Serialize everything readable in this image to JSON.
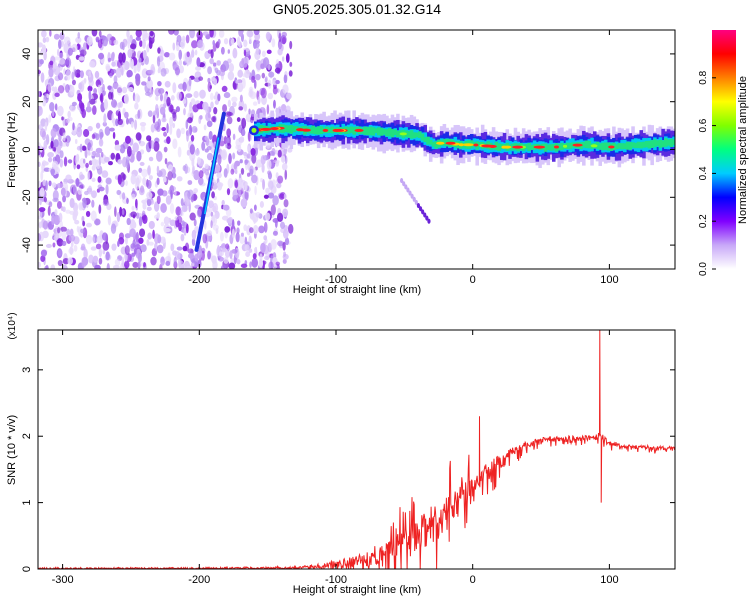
{
  "title": "GN05.2025.305.01.32.G14",
  "colors": {
    "snr_line": "#ee2222",
    "ridge_blue": "#2233dd",
    "noise_purple": "#8a2be2",
    "frame": "#000000"
  },
  "chart_data": [
    {
      "type": "heatmap",
      "title": "GN05.2025.305.01.32.G14",
      "xlabel": "Height of straight line (km)",
      "ylabel": "Frequency (Hz)",
      "xlim": [
        -318,
        148
      ],
      "ylim": [
        -50,
        50
      ],
      "xticks": [
        -300,
        -200,
        -100,
        0,
        100
      ],
      "xtick_labels": [
        "-300",
        "-200",
        "-100",
        "0",
        "100"
      ],
      "yticks": [
        -40,
        -20,
        0,
        20,
        40
      ],
      "ytick_labels": [
        "-40",
        "-20",
        "0",
        "20",
        "40"
      ],
      "colorbar": {
        "label": "Normalized spectral amplitude",
        "range": [
          0,
          1
        ],
        "ticks": [
          0.0,
          0.2,
          0.4,
          0.6,
          0.8
        ],
        "tick_labels": [
          "0.0",
          "0.2",
          "0.4",
          "0.6",
          "0.8"
        ],
        "colormap": [
          "#ffffff",
          "#c8a8f8",
          "#8000ff",
          "#0000ff",
          "#00ccff",
          "#00ff80",
          "#80ff00",
          "#ffff00",
          "#ff8000",
          "#ff0000",
          "#ff0080"
        ]
      },
      "noise_region_x": [
        -318,
        -133
      ],
      "ridge": {
        "x": [
          -160,
          -140,
          -120,
          -100,
          -80,
          -60,
          -40,
          -30,
          -20,
          -10,
          0,
          20,
          40,
          60,
          80,
          100,
          120,
          148
        ],
        "freq": [
          8,
          9,
          8,
          8,
          8,
          7,
          6,
          2,
          3,
          2,
          2,
          1,
          1,
          1,
          2,
          1,
          2,
          3
        ]
      },
      "diagonal_streak": {
        "x": [
          -202,
          -182
        ],
        "freq": [
          -42,
          15
        ]
      },
      "faint_streak": {
        "x": [
          -52,
          -32
        ],
        "freq": [
          -13,
          -30
        ]
      }
    },
    {
      "type": "line",
      "xlabel": "Height of straight line (km)",
      "ylabel": "SNR (10 * v/v)",
      "y_multiplier": "(x10⁴)",
      "xlim": [
        -318,
        148
      ],
      "ylim": [
        0,
        3.6
      ],
      "xticks": [
        -300,
        -200,
        -100,
        0,
        100
      ],
      "xtick_labels": [
        "-300",
        "-200",
        "-100",
        "0",
        "100"
      ],
      "yticks": [
        0,
        1,
        2,
        3
      ],
      "ytick_labels": [
        "0",
        "1",
        "2",
        "3"
      ],
      "series": [
        {
          "name": "SNR",
          "x": [
            -318,
            -250,
            -200,
            -150,
            -130,
            -120,
            -110,
            -100,
            -90,
            -80,
            -70,
            -60,
            -50,
            -40,
            -30,
            -20,
            -10,
            0,
            10,
            20,
            30,
            40,
            50,
            60,
            70,
            80,
            90,
            93,
            100,
            110,
            120,
            130,
            140,
            148
          ],
          "envelope": [
            0.01,
            0.01,
            0.01,
            0.02,
            0.03,
            0.05,
            0.08,
            0.12,
            0.18,
            0.26,
            0.36,
            0.48,
            0.62,
            0.78,
            0.95,
            1.12,
            1.28,
            1.42,
            1.58,
            1.72,
            1.84,
            1.92,
            1.97,
            1.99,
            2.0,
            2.01,
            2.02,
            2.05,
            1.92,
            1.88,
            1.86,
            1.85,
            1.84,
            1.83
          ],
          "noise": [
            0.005,
            0.005,
            0.005,
            0.01,
            0.02,
            0.04,
            0.06,
            0.1,
            0.15,
            0.22,
            0.3,
            0.38,
            0.45,
            0.55,
            0.6,
            0.55,
            0.45,
            0.35,
            0.28,
            0.2,
            0.14,
            0.1,
            0.08,
            0.07,
            0.07,
            0.07,
            0.08,
            0.08,
            0.06,
            0.06,
            0.05,
            0.05,
            0.05,
            0.05
          ]
        }
      ],
      "spikes": [
        {
          "x": 5,
          "y": 2.3
        },
        {
          "x": 93,
          "y": 3.6
        },
        {
          "x": 94,
          "y": 1.0
        }
      ]
    }
  ]
}
